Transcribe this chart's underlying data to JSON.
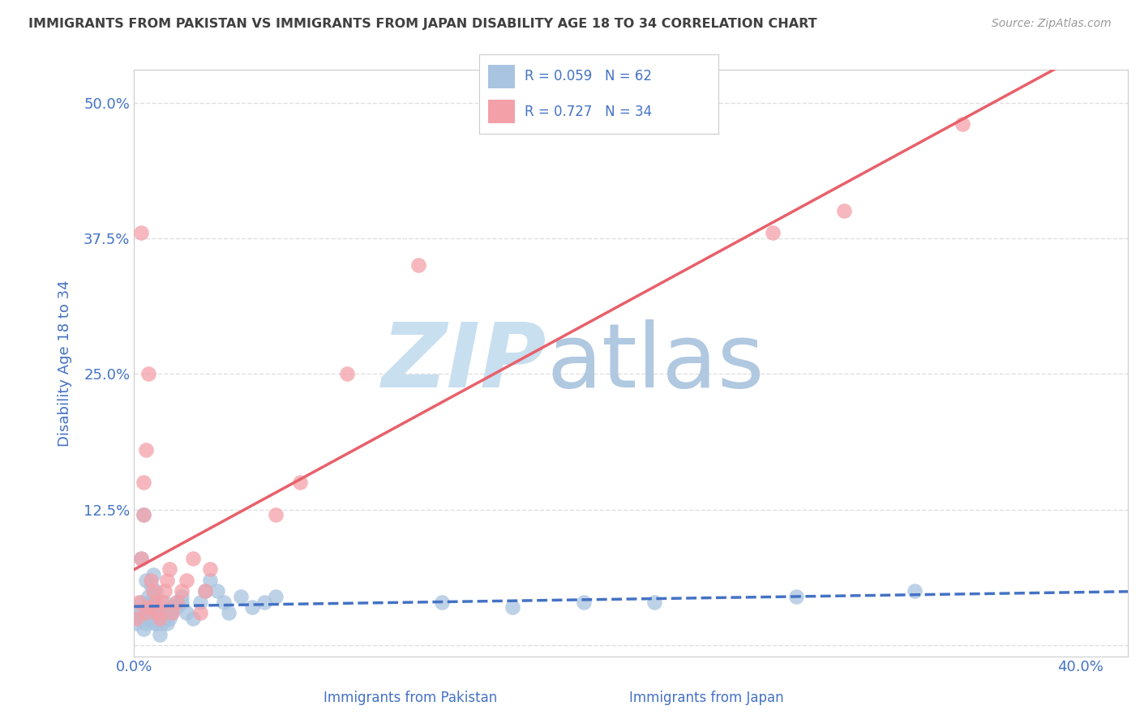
{
  "title": "IMMIGRANTS FROM PAKISTAN VS IMMIGRANTS FROM JAPAN DISABILITY AGE 18 TO 34 CORRELATION CHART",
  "source": "Source: ZipAtlas.com",
  "ylabel": "Disability Age 18 to 34",
  "xlabel_pakistan": "Immigrants from Pakistan",
  "xlabel_japan": "Immigrants from Japan",
  "xlim": [
    0.0,
    0.42
  ],
  "ylim": [
    -0.01,
    0.53
  ],
  "yticks": [
    0.0,
    0.125,
    0.25,
    0.375,
    0.5
  ],
  "ytick_labels": [
    "",
    "12.5%",
    "25.0%",
    "37.5%",
    "50.0%"
  ],
  "xticks": [
    0.0,
    0.1,
    0.2,
    0.3,
    0.4
  ],
  "xtick_labels": [
    "0.0%",
    "",
    "",
    "",
    "40.0%"
  ],
  "pakistan_R": 0.059,
  "pakistan_N": 62,
  "japan_R": 0.727,
  "japan_N": 34,
  "pakistan_dot_color": "#a8c4e0",
  "japan_dot_color": "#f4a0a8",
  "pakistan_line_color": "#4472c4",
  "japan_line_color": "#e8606a",
  "title_color": "#404040",
  "axis_label_color": "#4472c4",
  "watermark_zip_color": "#c8dff0",
  "watermark_atlas_color": "#b0c8e0",
  "grid_color": "#e0e0e0",
  "background_color": "#ffffff",
  "pakistan_scatter_x": [
    0.002,
    0.003,
    0.004,
    0.005,
    0.006,
    0.007,
    0.008,
    0.009,
    0.01,
    0.011,
    0.012,
    0.013,
    0.014,
    0.015,
    0.016,
    0.018,
    0.02,
    0.022,
    0.025,
    0.028,
    0.03,
    0.032,
    0.035,
    0.038,
    0.04,
    0.045,
    0.05,
    0.055,
    0.06,
    0.001,
    0.002,
    0.003,
    0.004,
    0.005,
    0.006,
    0.007,
    0.008,
    0.009,
    0.01,
    0.011,
    0.012,
    0.013,
    0.014,
    0.015,
    0.016,
    0.018,
    0.02,
    0.13,
    0.16,
    0.19,
    0.22,
    0.28,
    0.33,
    0.003,
    0.004,
    0.005,
    0.006,
    0.007,
    0.008,
    0.009,
    0.01,
    0.011
  ],
  "pakistan_scatter_y": [
    0.03,
    0.04,
    0.025,
    0.03,
    0.035,
    0.04,
    0.045,
    0.05,
    0.03,
    0.025,
    0.03,
    0.04,
    0.02,
    0.03,
    0.035,
    0.04,
    0.045,
    0.03,
    0.025,
    0.04,
    0.05,
    0.06,
    0.05,
    0.04,
    0.03,
    0.045,
    0.035,
    0.04,
    0.045,
    0.02,
    0.025,
    0.03,
    0.015,
    0.02,
    0.025,
    0.03,
    0.035,
    0.02,
    0.025,
    0.03,
    0.02,
    0.025,
    0.03,
    0.025,
    0.03,
    0.035,
    0.04,
    0.04,
    0.035,
    0.04,
    0.04,
    0.045,
    0.05,
    0.08,
    0.12,
    0.06,
    0.045,
    0.055,
    0.065,
    0.02,
    0.025,
    0.01
  ],
  "japan_scatter_x": [
    0.001,
    0.002,
    0.003,
    0.004,
    0.005,
    0.006,
    0.007,
    0.008,
    0.009,
    0.01,
    0.011,
    0.012,
    0.013,
    0.014,
    0.015,
    0.016,
    0.018,
    0.02,
    0.022,
    0.025,
    0.028,
    0.03,
    0.032,
    0.003,
    0.004,
    0.005,
    0.006,
    0.27,
    0.3,
    0.35,
    0.06,
    0.07,
    0.09,
    0.12
  ],
  "japan_scatter_y": [
    0.025,
    0.04,
    0.08,
    0.12,
    0.03,
    0.035,
    0.06,
    0.05,
    0.04,
    0.03,
    0.025,
    0.04,
    0.05,
    0.06,
    0.07,
    0.03,
    0.04,
    0.05,
    0.06,
    0.08,
    0.03,
    0.05,
    0.07,
    0.38,
    0.15,
    0.18,
    0.25,
    0.38,
    0.4,
    0.48,
    0.12,
    0.15,
    0.25,
    0.35
  ]
}
